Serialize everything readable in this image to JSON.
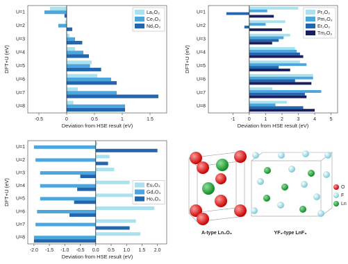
{
  "chart_data": [
    {
      "type": "hbar",
      "categories": [
        "U=1",
        "U=2",
        "U=3",
        "U=4",
        "U=5",
        "U=6",
        "U=7",
        "U=8"
      ],
      "series": [
        {
          "name": "La₂O₃",
          "color": "#a9e1ee",
          "values": [
            -0.3,
            -0.03,
            0.05,
            0.15,
            0.45,
            0.55,
            0.2,
            0.12
          ]
        },
        {
          "name": "Ce₂O₃",
          "color": "#4aa6dc",
          "values": [
            -0.4,
            -0.15,
            0.15,
            0.3,
            0.42,
            0.8,
            0.9,
            1.05
          ]
        },
        {
          "name": "Nd₂O₃",
          "color": "#2466ad",
          "values": [
            -0.04,
            0.1,
            0.28,
            0.4,
            0.62,
            0.9,
            1.65,
            1.05
          ]
        }
      ],
      "xlim": [
        -0.7,
        1.8
      ],
      "xticks": [
        -0.5,
        0,
        0.5,
        1,
        1.5
      ],
      "xlabel": "Deviation from HSE result (eV)",
      "ylabel": "DFT+U (eV)",
      "legend": "upper right"
    },
    {
      "type": "hbar",
      "categories": [
        "U=1",
        "U=2",
        "U=3",
        "U=4",
        "U=5",
        "U=6",
        "U=7",
        "U=8"
      ],
      "series": [
        {
          "name": "Pr₂O₃",
          "color": "#a9e1ee",
          "values": [
            3.0,
            2.2,
            2.5,
            2.8,
            3.1,
            3.9,
            1.4,
            2.3
          ]
        },
        {
          "name": "Pm₂O₃",
          "color": "#4aa6dc",
          "values": [
            1.1,
            1.0,
            2.1,
            2.9,
            3.5,
            3.9,
            4.4,
            1.6
          ]
        },
        {
          "name": "Er₂O₃",
          "color": "#2466ad",
          "values": [
            -1.4,
            -0.3,
            1.8,
            3.1,
            1.8,
            2.8,
            3.4,
            3.3
          ]
        },
        {
          "name": "Tm₂O₃",
          "color": "#1a1f5e",
          "values": [
            1.5,
            2.0,
            1.4,
            3.3,
            2.5,
            3.8,
            3.5,
            4.0
          ]
        }
      ],
      "xlim": [
        -2.5,
        5.4
      ],
      "xticks": [
        -1,
        0,
        1,
        2,
        3,
        4,
        5
      ],
      "xlabel": "Deviation from HSE result (eV)",
      "ylabel": "DFT+U (eV)",
      "legend": "upper right"
    },
    {
      "type": "hbar",
      "categories": [
        "U=1",
        "U=2",
        "U=3",
        "U=4",
        "U=5",
        "U=6",
        "U=7",
        "U=8"
      ],
      "series": [
        {
          "name": "Eu₂O₃",
          "color": "#a9e1ee",
          "values": [
            0.05,
            0.45,
            0.6,
            1.1,
            1.5,
            1.9,
            1.3,
            1.45
          ]
        },
        {
          "name": "Gd₂O₃",
          "color": "#4aa6dc",
          "values": [
            -2.0,
            -1.95,
            -1.8,
            -1.8,
            -1.8,
            -1.9,
            -1.95,
            -2.0
          ]
        },
        {
          "name": "Ho₂O₃",
          "color": "#2466ad",
          "values": [
            2.0,
            0.4,
            -0.5,
            -0.6,
            -0.7,
            -0.85,
            1.1,
            -2.0
          ]
        }
      ],
      "xlim": [
        -2.2,
        2.3
      ],
      "xticks": [
        {
          "value": -2,
          "label": "-2.0"
        },
        {
          "value": -1.5,
          "label": "-1.5"
        },
        {
          "value": -1,
          "label": "-1.0"
        },
        {
          "value": -0.5,
          "label": "-0.5"
        },
        {
          "value": 0,
          "label": "0.0"
        },
        {
          "value": 0.5,
          "label": "0.5"
        },
        {
          "value": 1,
          "label": "1.0"
        },
        {
          "value": 1.5,
          "label": "1.5"
        },
        {
          "value": 2,
          "label": "2.0"
        }
      ],
      "xlabel": "Deviation from HSE result (eV)",
      "ylabel": "DFT+U (eV)",
      "legend": "center right"
    }
  ],
  "structures": {
    "labels": [
      "A-type Ln₂O₃",
      "YF₃-type LnF₃"
    ],
    "legend": [
      "O",
      "F",
      "Ln"
    ]
  }
}
